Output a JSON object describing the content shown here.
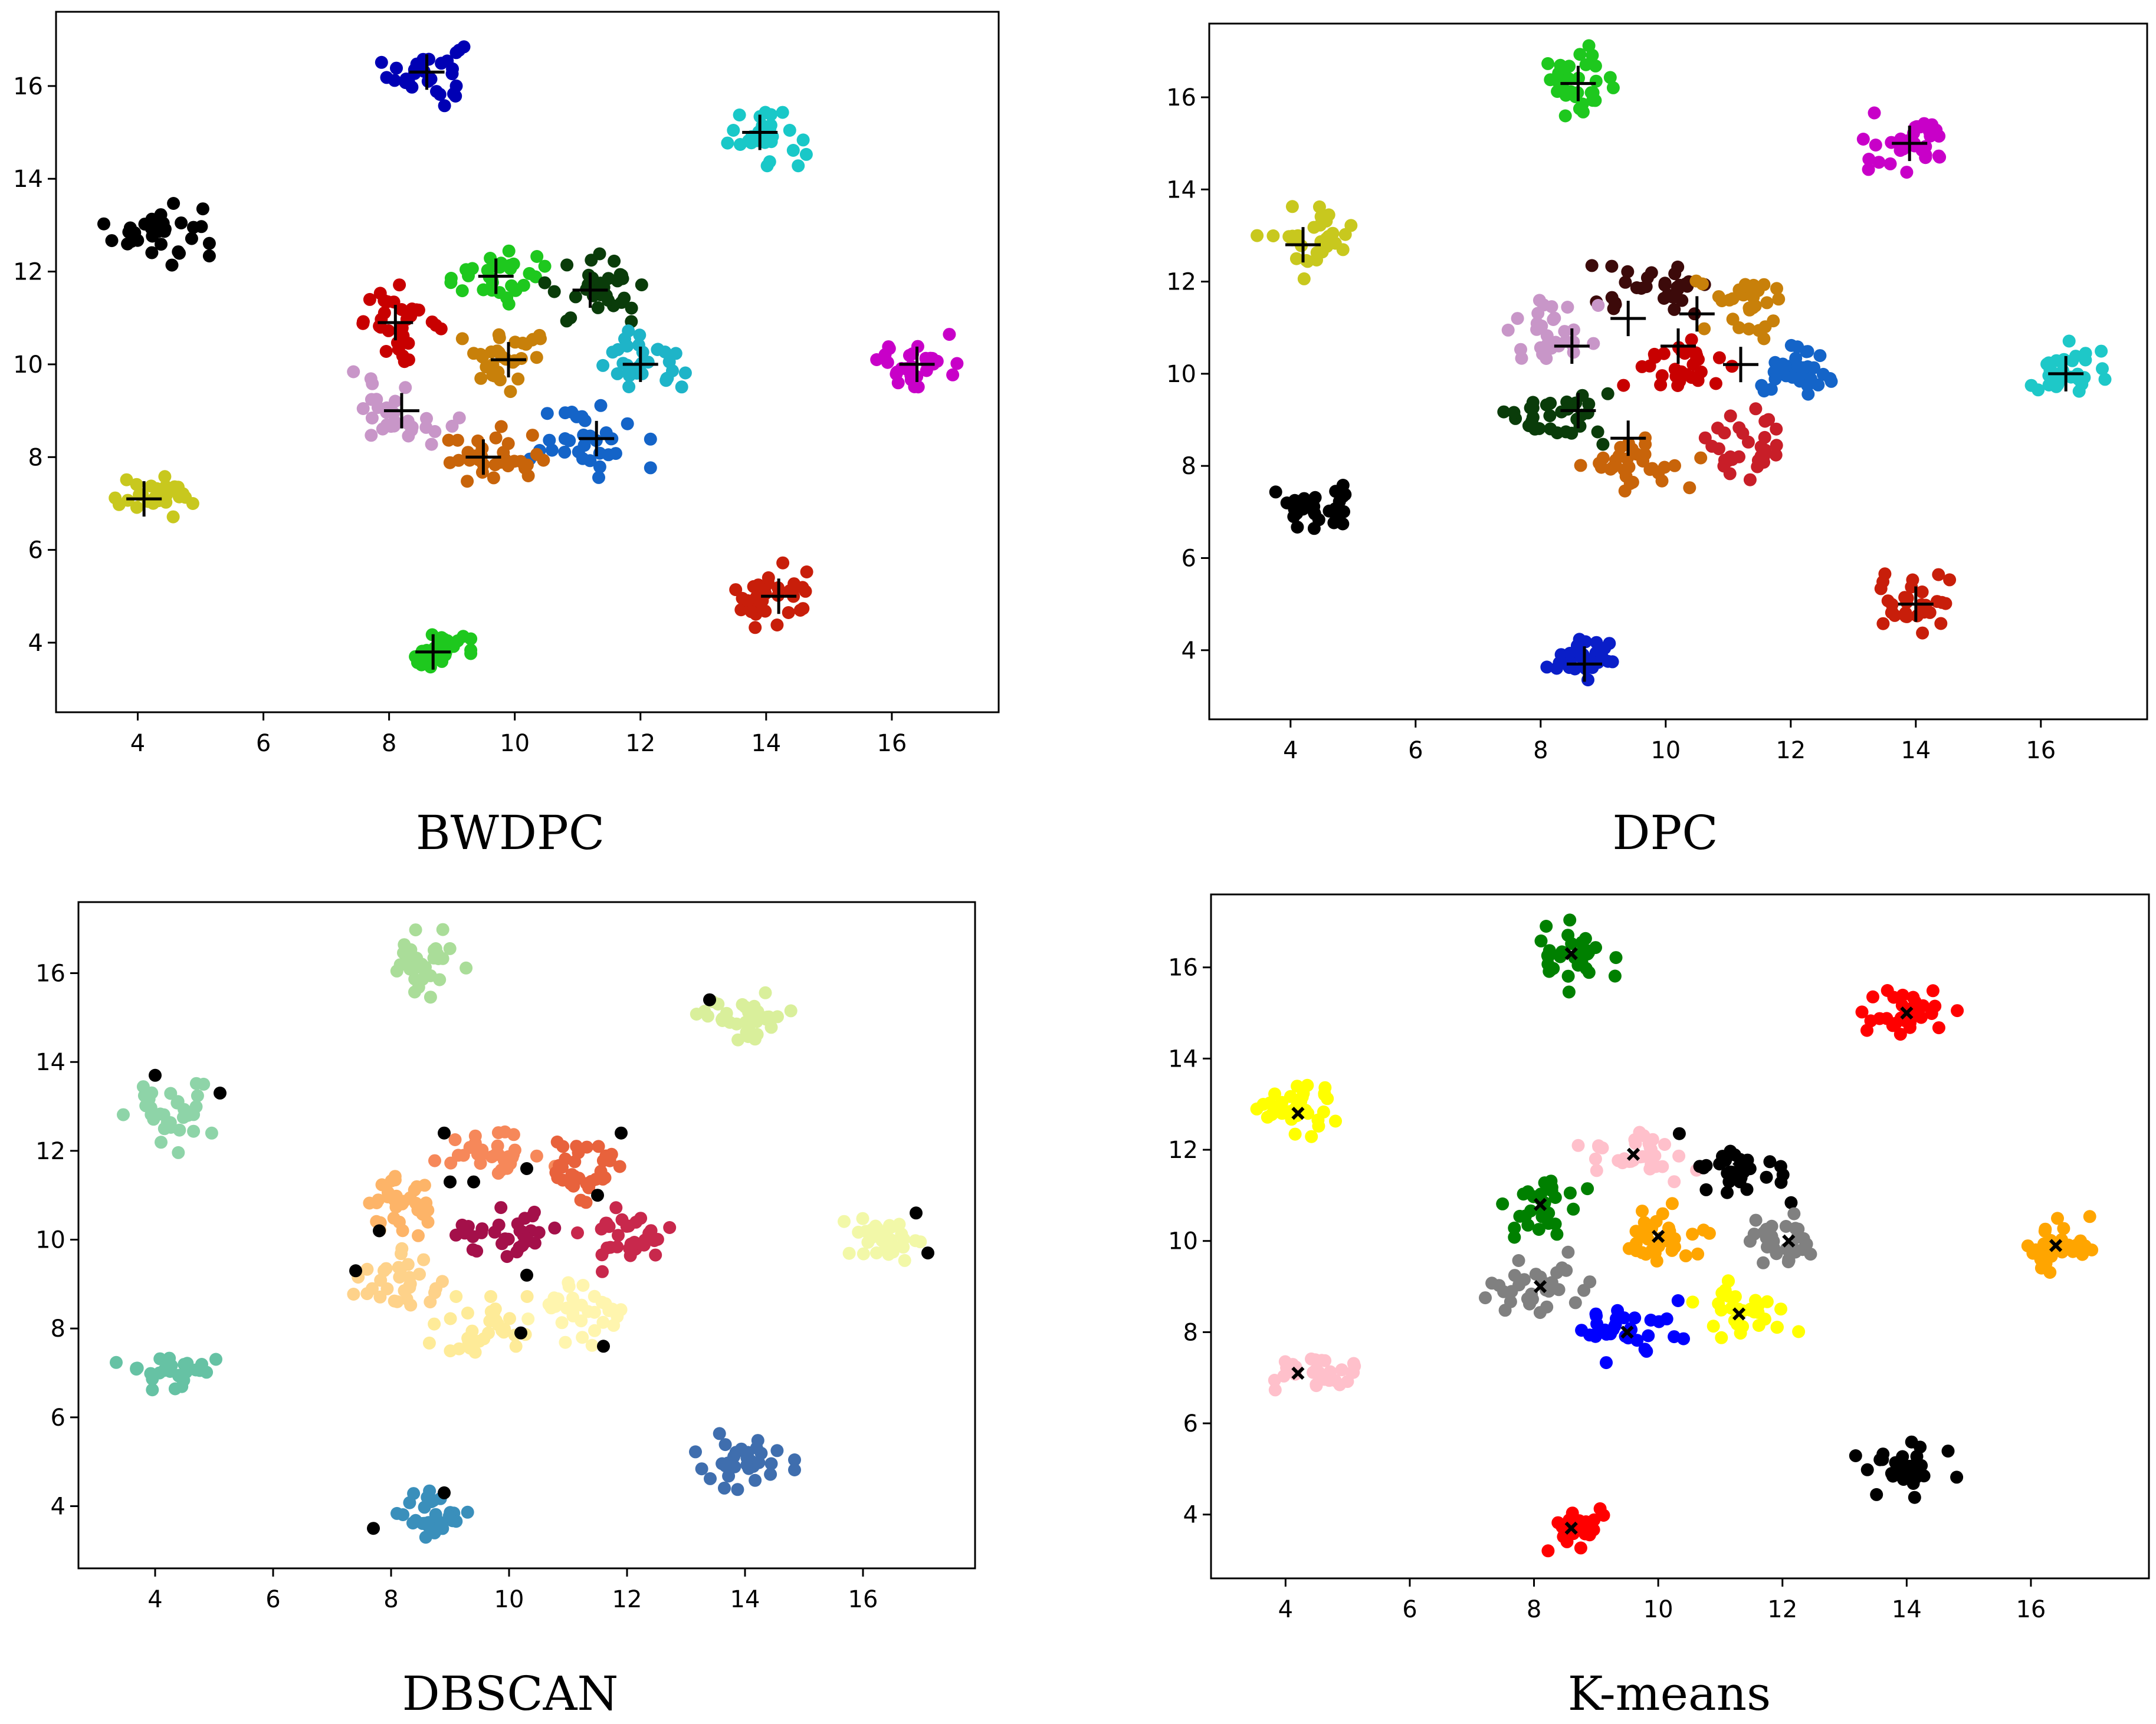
{
  "chart_data": [
    {
      "type": "scatter",
      "title": "BWDPC",
      "xlim": [
        2.7,
        17.7
      ],
      "ylim": [
        2.5,
        17.6
      ],
      "xticks": [
        4,
        6,
        8,
        10,
        12,
        14,
        16
      ],
      "yticks": [
        4,
        6,
        8,
        10,
        12,
        14,
        16
      ],
      "xlabel": "",
      "ylabel": "",
      "grid": false,
      "legend": "none",
      "center_marker": "plus",
      "clusters": [
        {
          "center": [
            8.6,
            16.3
          ],
          "color": "#0000b4",
          "spread": [
            0.3,
            0.35
          ]
        },
        {
          "center": [
            14.0,
            15.0
          ],
          "color": "#19c8c8",
          "spread": [
            0.35,
            0.3
          ]
        },
        {
          "center": [
            4.3,
            12.9
          ],
          "color": "#000000",
          "spread": [
            0.35,
            0.35
          ]
        },
        {
          "center": [
            9.7,
            11.9
          ],
          "color": "#1ec81e",
          "spread": [
            0.45,
            0.25
          ]
        },
        {
          "center": [
            11.3,
            11.6
          ],
          "color": "#0a3c0a",
          "spread": [
            0.4,
            0.35
          ]
        },
        {
          "center": [
            8.2,
            10.9
          ],
          "color": "#c80000",
          "spread": [
            0.3,
            0.35
          ]
        },
        {
          "center": [
            9.9,
            10.1
          ],
          "color": "#c8800a",
          "spread": [
            0.4,
            0.3
          ]
        },
        {
          "center": [
            12.0,
            10.0
          ],
          "color": "#1eb4c8",
          "spread": [
            0.35,
            0.3
          ]
        },
        {
          "center": [
            16.4,
            10.0
          ],
          "color": "#c800c8",
          "spread": [
            0.3,
            0.3
          ]
        },
        {
          "center": [
            8.2,
            9.0
          ],
          "color": "#c896c8",
          "spread": [
            0.4,
            0.35
          ]
        },
        {
          "center": [
            11.2,
            8.4
          ],
          "color": "#1464c8",
          "spread": [
            0.4,
            0.35
          ]
        },
        {
          "center": [
            9.6,
            8.0
          ],
          "color": "#c8640a",
          "spread": [
            0.4,
            0.3
          ]
        },
        {
          "center": [
            4.3,
            7.1
          ],
          "color": "#c8c81e",
          "spread": [
            0.4,
            0.2
          ]
        },
        {
          "center": [
            14.2,
            5.0
          ],
          "color": "#c81e0a",
          "spread": [
            0.35,
            0.3
          ]
        },
        {
          "center": [
            8.7,
            3.8
          ],
          "color": "#1ec81e",
          "spread": [
            0.25,
            0.25
          ]
        }
      ],
      "centers": [
        [
          8.6,
          16.3
        ],
        [
          13.9,
          15.0
        ],
        [
          9.7,
          11.9
        ],
        [
          11.2,
          11.6
        ],
        [
          8.1,
          10.9
        ],
        [
          9.9,
          10.1
        ],
        [
          12.0,
          10.0
        ],
        [
          16.4,
          10.0
        ],
        [
          8.2,
          9.0
        ],
        [
          11.3,
          8.4
        ],
        [
          9.5,
          8.0
        ],
        [
          4.1,
          7.1
        ],
        [
          14.2,
          5.0
        ],
        [
          8.7,
          3.8
        ]
      ]
    },
    {
      "type": "scatter",
      "title": "DPC",
      "xlim": [
        2.7,
        17.7
      ],
      "ylim": [
        2.5,
        17.6
      ],
      "xticks": [
        4,
        6,
        8,
        10,
        12,
        14,
        16
      ],
      "yticks": [
        4,
        6,
        8,
        10,
        12,
        14,
        16
      ],
      "xlabel": "",
      "ylabel": "",
      "grid": false,
      "legend": "none",
      "center_marker": "plus",
      "clusters": [
        {
          "center": [
            8.6,
            16.3
          ],
          "color": "#1ec81e",
          "spread": [
            0.3,
            0.35
          ]
        },
        {
          "center": [
            14.0,
            15.0
          ],
          "color": "#c800c8",
          "spread": [
            0.35,
            0.3
          ]
        },
        {
          "center": [
            4.3,
            12.9
          ],
          "color": "#c8c81e",
          "spread": [
            0.35,
            0.35
          ]
        },
        {
          "center": [
            9.9,
            11.9
          ],
          "color": "#3c0a0a",
          "spread": [
            0.45,
            0.25
          ]
        },
        {
          "center": [
            11.3,
            11.6
          ],
          "color": "#c8800a",
          "spread": [
            0.4,
            0.35
          ]
        },
        {
          "center": [
            8.2,
            10.9
          ],
          "color": "#c896c8",
          "spread": [
            0.3,
            0.35
          ]
        },
        {
          "center": [
            10.1,
            10.2
          ],
          "color": "#c80000",
          "spread": [
            0.4,
            0.3
          ]
        },
        {
          "center": [
            12.0,
            10.0
          ],
          "color": "#1464c8",
          "spread": [
            0.35,
            0.3
          ]
        },
        {
          "center": [
            16.4,
            10.0
          ],
          "color": "#1ec8c8",
          "spread": [
            0.3,
            0.3
          ]
        },
        {
          "center": [
            8.2,
            9.1
          ],
          "color": "#0a3c0a",
          "spread": [
            0.4,
            0.3
          ]
        },
        {
          "center": [
            11.2,
            8.4
          ],
          "color": "#c81e28",
          "spread": [
            0.4,
            0.35
          ]
        },
        {
          "center": [
            9.6,
            8.0
          ],
          "color": "#c8640a",
          "spread": [
            0.4,
            0.3
          ]
        },
        {
          "center": [
            4.3,
            7.1
          ],
          "color": "#000000",
          "spread": [
            0.4,
            0.2
          ]
        },
        {
          "center": [
            14.0,
            5.0
          ],
          "color": "#c81e0a",
          "spread": [
            0.35,
            0.3
          ]
        },
        {
          "center": [
            8.7,
            3.8
          ],
          "color": "#0a1ec8",
          "spread": [
            0.25,
            0.25
          ]
        }
      ],
      "centers": [
        [
          8.6,
          16.3
        ],
        [
          13.9,
          15.0
        ],
        [
          4.2,
          12.8
        ],
        [
          9.4,
          11.2
        ],
        [
          10.5,
          11.3
        ],
        [
          8.5,
          10.6
        ],
        [
          10.2,
          10.6
        ],
        [
          11.2,
          10.2
        ],
        [
          16.4,
          10.0
        ],
        [
          8.6,
          9.2
        ],
        [
          9.4,
          8.6
        ],
        [
          14.0,
          5.0
        ],
        [
          8.7,
          3.7
        ]
      ]
    },
    {
      "type": "scatter",
      "title": "DBSCAN",
      "xlim": [
        2.7,
        17.9
      ],
      "ylim": [
        2.6,
        17.6
      ],
      "xticks": [
        4,
        6,
        8,
        10,
        12,
        14,
        16
      ],
      "yticks": [
        4,
        6,
        8,
        10,
        12,
        14,
        16
      ],
      "xlabel": "",
      "ylabel": "",
      "grid": false,
      "legend": "none",
      "center_marker": "none",
      "clusters": [
        {
          "center": [
            8.6,
            16.3
          ],
          "color": "#aadd99",
          "spread": [
            0.3,
            0.35
          ]
        },
        {
          "center": [
            14.0,
            15.0
          ],
          "color": "#d9ef9b",
          "spread": [
            0.35,
            0.3
          ]
        },
        {
          "center": [
            4.3,
            12.8
          ],
          "color": "#8ed4a8",
          "spread": [
            0.35,
            0.35
          ]
        },
        {
          "center": [
            9.7,
            11.9
          ],
          "color": "#f6885a",
          "spread": [
            0.45,
            0.25
          ]
        },
        {
          "center": [
            11.3,
            11.6
          ],
          "color": "#e8623c",
          "spread": [
            0.4,
            0.35
          ]
        },
        {
          "center": [
            8.2,
            10.8
          ],
          "color": "#fdb468",
          "spread": [
            0.3,
            0.35
          ]
        },
        {
          "center": [
            10.0,
            10.2
          ],
          "color": "#a4104a",
          "spread": [
            0.4,
            0.3
          ]
        },
        {
          "center": [
            12.0,
            10.0
          ],
          "color": "#c8284c",
          "spread": [
            0.35,
            0.3
          ]
        },
        {
          "center": [
            16.4,
            10.0
          ],
          "color": "#f2f8a8",
          "spread": [
            0.3,
            0.3
          ]
        },
        {
          "center": [
            8.2,
            9.1
          ],
          "color": "#fed28a",
          "spread": [
            0.4,
            0.35
          ]
        },
        {
          "center": [
            11.2,
            8.4
          ],
          "color": "#fff5ae",
          "spread": [
            0.4,
            0.35
          ]
        },
        {
          "center": [
            9.6,
            8.0
          ],
          "color": "#feeb98",
          "spread": [
            0.4,
            0.3
          ]
        },
        {
          "center": [
            4.3,
            7.1
          ],
          "color": "#66c2a4",
          "spread": [
            0.4,
            0.2
          ]
        },
        {
          "center": [
            14.0,
            5.0
          ],
          "color": "#3f6eae",
          "spread": [
            0.35,
            0.3
          ]
        },
        {
          "center": [
            8.7,
            3.8
          ],
          "color": "#3a8fbb",
          "spread": [
            0.25,
            0.25
          ]
        }
      ],
      "noise": {
        "color": "#000000",
        "points": [
          [
            4.0,
            13.7
          ],
          [
            5.1,
            13.3
          ],
          [
            13.4,
            15.4
          ],
          [
            8.9,
            12.4
          ],
          [
            9.0,
            11.3
          ],
          [
            9.4,
            11.3
          ],
          [
            10.3,
            11.6
          ],
          [
            11.5,
            11.0
          ],
          [
            11.9,
            12.4
          ],
          [
            7.8,
            10.2
          ],
          [
            7.4,
            9.3
          ],
          [
            10.3,
            9.2
          ],
          [
            10.2,
            7.9
          ],
          [
            11.6,
            7.6
          ],
          [
            16.9,
            10.6
          ],
          [
            17.1,
            9.7
          ],
          [
            7.7,
            3.5
          ],
          [
            8.9,
            4.3
          ]
        ]
      }
    },
    {
      "type": "scatter",
      "title": "K-means",
      "xlim": [
        2.8,
        17.9
      ],
      "ylim": [
        2.6,
        17.6
      ],
      "xticks": [
        4,
        6,
        8,
        10,
        12,
        14,
        16
      ],
      "yticks": [
        4,
        6,
        8,
        10,
        12,
        14,
        16
      ],
      "xlabel": "",
      "ylabel": "",
      "grid": false,
      "legend": "none",
      "center_marker": "x",
      "clusters": [
        {
          "center": [
            8.6,
            16.3
          ],
          "color": "#008000",
          "spread": [
            0.3,
            0.35
          ]
        },
        {
          "center": [
            14.0,
            15.0
          ],
          "color": "#ff0000",
          "spread": [
            0.35,
            0.3
          ]
        },
        {
          "center": [
            4.3,
            12.8
          ],
          "color": "#ffff00",
          "spread": [
            0.35,
            0.35
          ]
        },
        {
          "center": [
            9.6,
            11.9
          ],
          "color": "#ffc0cb",
          "spread": [
            0.45,
            0.25
          ]
        },
        {
          "center": [
            11.3,
            11.6
          ],
          "color": "#000000",
          "spread": [
            0.4,
            0.35
          ]
        },
        {
          "center": [
            8.2,
            10.8
          ],
          "color": "#008000",
          "spread": [
            0.3,
            0.35
          ]
        },
        {
          "center": [
            10.0,
            10.1
          ],
          "color": "#ffa500",
          "spread": [
            0.4,
            0.3
          ]
        },
        {
          "center": [
            12.0,
            10.0
          ],
          "color": "#808080",
          "spread": [
            0.35,
            0.3
          ]
        },
        {
          "center": [
            16.4,
            9.9
          ],
          "color": "#ffa500",
          "spread": [
            0.3,
            0.3
          ]
        },
        {
          "center": [
            8.1,
            9.1
          ],
          "color": "#808080",
          "spread": [
            0.4,
            0.35
          ]
        },
        {
          "center": [
            11.3,
            8.4
          ],
          "color": "#ffff00",
          "spread": [
            0.4,
            0.35
          ]
        },
        {
          "center": [
            9.5,
            8.0
          ],
          "color": "#0000ff",
          "spread": [
            0.4,
            0.3
          ]
        },
        {
          "center": [
            4.3,
            7.1
          ],
          "color": "#ffc0cb",
          "spread": [
            0.4,
            0.2
          ]
        },
        {
          "center": [
            14.0,
            5.0
          ],
          "color": "#000000",
          "spread": [
            0.35,
            0.3
          ]
        },
        {
          "center": [
            8.7,
            3.8
          ],
          "color": "#ff0000",
          "spread": [
            0.25,
            0.25
          ]
        }
      ],
      "centers": [
        [
          8.6,
          16.3
        ],
        [
          14.0,
          15.0
        ],
        [
          4.2,
          12.8
        ],
        [
          9.6,
          11.9
        ],
        [
          11.3,
          11.6
        ],
        [
          8.1,
          10.8
        ],
        [
          10.0,
          10.1
        ],
        [
          12.1,
          10.0
        ],
        [
          16.4,
          9.9
        ],
        [
          8.1,
          9.0
        ],
        [
          11.3,
          8.4
        ],
        [
          9.5,
          8.0
        ],
        [
          4.2,
          7.1
        ],
        [
          14.0,
          5.0
        ],
        [
          8.6,
          3.7
        ]
      ]
    }
  ]
}
